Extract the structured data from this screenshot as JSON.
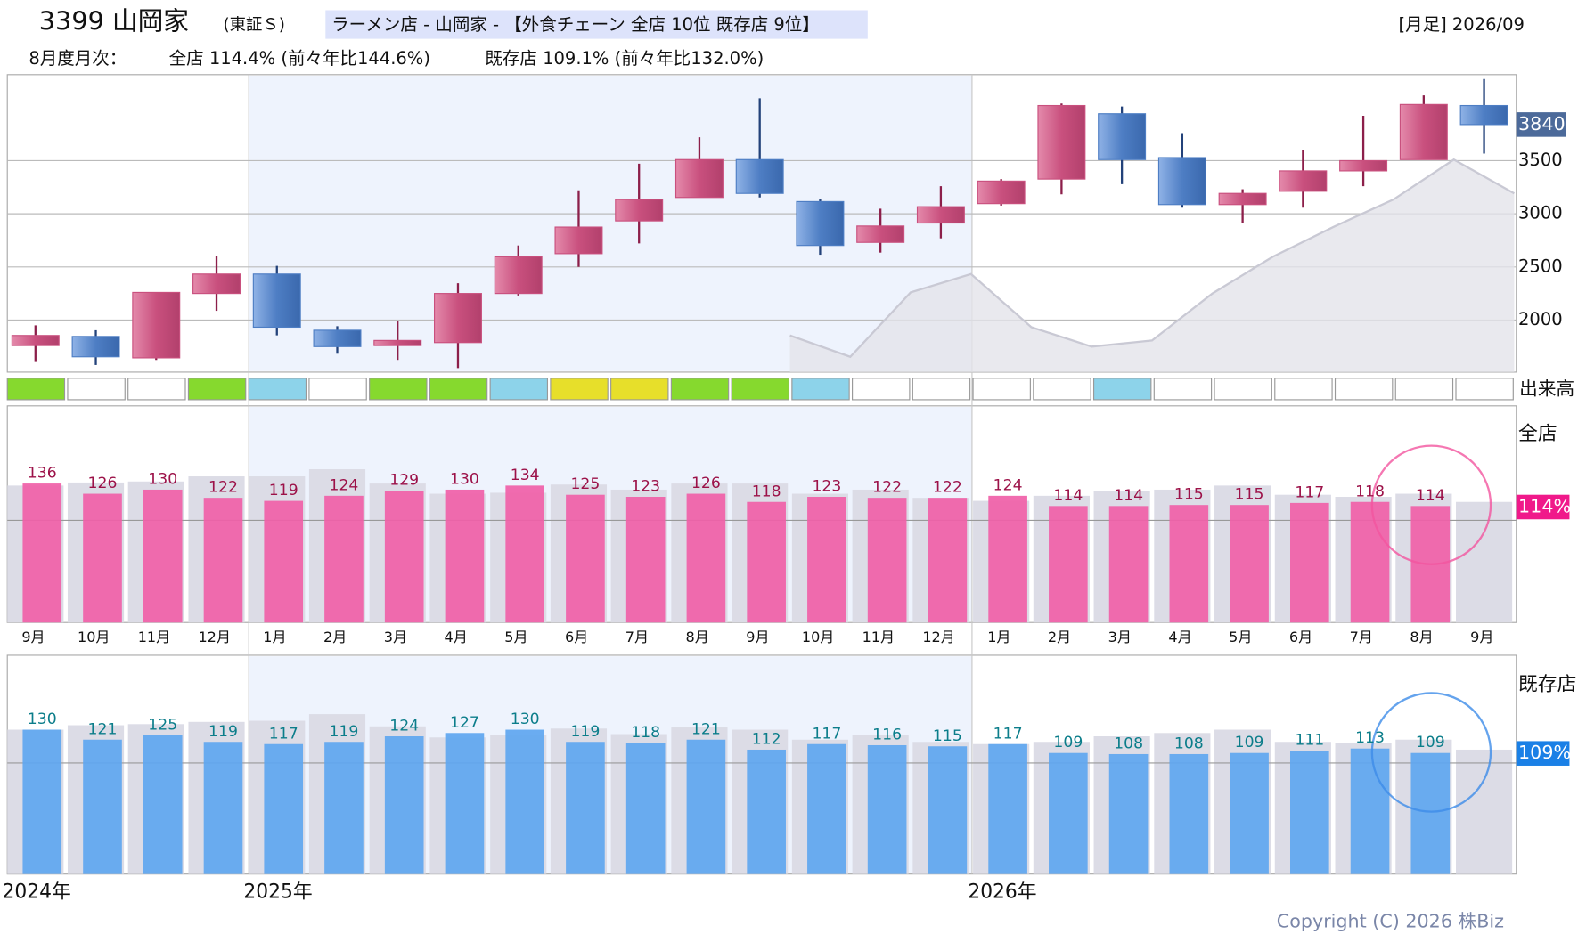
{
  "header": {
    "code_name": "3399 山岡家",
    "market": "(東証Ｓ)",
    "tag": "ラーメン店 - 山岡家 - 【外食チェーン 全店 10位 既存店 9位】",
    "period": "[月足] 2026/09",
    "monthly_label": "8月度月次：",
    "all_stores": "全店 114.4% (前々年比144.6%)",
    "existing_stores": "既存店 109.1% (前々年比132.0%)",
    "copyright": "Copyright (C) 2026 株Biz"
  },
  "chart_data": [
    {
      "type": "candlestick",
      "up_color": "#c9507e",
      "down_color": "#4e7ec4",
      "prior_color": "#c9c9d4",
      "open": [
        1760,
        1846,
        1644,
        2250,
        2433,
        1904,
        1760,
        1788,
        2250,
        2625,
        2933,
        3154,
        3510,
        3115,
        2731,
        2913,
        3096,
        3327,
        3942,
        3529,
        3087,
        3212,
        3404,
        3510,
        4019
      ],
      "high": [
        1950,
        1904,
        2260,
        2606,
        2510,
        1942,
        1990,
        2346,
        2702,
        3221,
        3471,
        3721,
        4087,
        3135,
        3048,
        3260,
        3327,
        4038,
        4010,
        3760,
        3231,
        3596,
        3923,
        4115,
        4269
      ],
      "low": [
        1605,
        1577,
        1625,
        2087,
        1856,
        1683,
        1625,
        1548,
        2231,
        2500,
        2721,
        3154,
        3154,
        2615,
        2635,
        2769,
        3077,
        3183,
        3279,
        3058,
        2913,
        3058,
        3260,
        3510,
        3567
      ],
      "close": [
        1855,
        1654,
        2260,
        2433,
        1933,
        1750,
        1808,
        2250,
        2596,
        2875,
        3135,
        3510,
        3192,
        2702,
        2885,
        3067,
        3308,
        4019,
        3510,
        3087,
        3192,
        3404,
        3500,
        4029,
        3840
      ],
      "prior_year_close": [
        null,
        null,
        null,
        null,
        null,
        null,
        null,
        null,
        null,
        null,
        null,
        null,
        1855,
        1654,
        2260,
        2433,
        1933,
        1750,
        1808,
        2250,
        2596,
        2875,
        3135,
        3510,
        3192
      ],
      "ylim": [
        1510,
        4310
      ],
      "yticks": [
        2000,
        2500,
        3000,
        3500
      ],
      "grid": true
    },
    {
      "type": "strip",
      "label": "出来高",
      "colors": [
        "#86d92e",
        "#ffffff",
        "#ffffff",
        "#86d92e",
        "#8dd3ea",
        "#ffffff",
        "#86d92e",
        "#86d92e",
        "#8dd3ea",
        "#e7df2a",
        "#e7df2a",
        "#86d92e",
        "#86d92e",
        "#8dd3ea",
        "#ffffff",
        "#ffffff",
        "#ffffff",
        "#ffffff",
        "#8dd3ea",
        "#ffffff",
        "#ffffff",
        "#ffffff",
        "#ffffff",
        "#ffffff",
        "#ffffff"
      ]
    },
    {
      "type": "bar",
      "label": "全店",
      "badge": "114%",
      "badge_color": "#f0198a",
      "color": "#f060a8",
      "prior_color": "#dcdce6",
      "label_color": "#9c1148",
      "categories": [
        "9月",
        "10月",
        "11月",
        "12月",
        "1月",
        "2月",
        "3月",
        "4月",
        "5月",
        "6月",
        "7月",
        "8月",
        "9月",
        "10月",
        "11月",
        "12月",
        "1月",
        "2月",
        "3月",
        "4月",
        "5月",
        "6月",
        "7月",
        "8月",
        "9月"
      ],
      "values": [
        136,
        126,
        130,
        122,
        119,
        124,
        129,
        130,
        134,
        125,
        123,
        126,
        118,
        123,
        122,
        122,
        124,
        114,
        114,
        115,
        115,
        117,
        118,
        114,
        null
      ],
      "prior_values": [
        134,
        137,
        138,
        143,
        143,
        150,
        136,
        126,
        127,
        135,
        130,
        136,
        136,
        126,
        130,
        122,
        119,
        124,
        129,
        130,
        134,
        125,
        123,
        126,
        118
      ],
      "ylim": [
        0,
        212
      ],
      "ref_line": 100
    },
    {
      "type": "bar",
      "label": "既存店",
      "badge": "109%",
      "badge_color": "#1a80e6",
      "color": "#5ea6f0",
      "prior_color": "#dcdce6",
      "label_color": "#0b7d8a",
      "years": [
        "2024年",
        null,
        null,
        null,
        "2025年",
        null,
        null,
        null,
        null,
        null,
        null,
        null,
        null,
        null,
        null,
        null,
        "2026年",
        null,
        null,
        null,
        null,
        null,
        null,
        null,
        null
      ],
      "values": [
        130,
        121,
        125,
        119,
        117,
        119,
        124,
        127,
        130,
        119,
        118,
        121,
        112,
        117,
        116,
        115,
        117,
        109,
        108,
        108,
        109,
        111,
        113,
        109,
        null
      ],
      "prior_values": [
        130,
        134,
        135,
        137,
        138,
        144,
        133,
        123,
        125,
        131,
        126,
        132,
        130,
        121,
        125,
        119,
        117,
        119,
        124,
        127,
        130,
        119,
        118,
        121,
        112
      ],
      "ylim": [
        0,
        197
      ],
      "ref_line": 100
    }
  ]
}
